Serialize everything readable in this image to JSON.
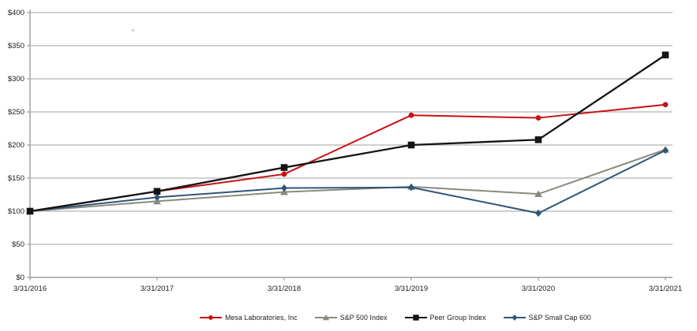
{
  "chart_data": {
    "type": "line",
    "title": "",
    "xlabel": "",
    "ylabel": "",
    "ylim": [
      0,
      400
    ],
    "grid": "horizontal",
    "legend_position": "bottom",
    "x_labels": [
      "3/31/2016",
      "3/31/2017",
      "3/31/2018",
      "3/31/2019",
      "3/31/2020",
      "3/31/2021"
    ],
    "y_ticks": [
      {
        "label": "$0",
        "value": 0
      },
      {
        "label": "$50",
        "value": 50
      },
      {
        "label": "$100",
        "value": 100
      },
      {
        "label": "$150",
        "value": 150
      },
      {
        "label": "$200",
        "value": 200
      },
      {
        "label": "$250",
        "value": 250
      },
      {
        "label": "$300",
        "value": 300
      },
      {
        "label": "$350",
        "value": 350
      },
      {
        "label": "$400",
        "value": 400
      }
    ],
    "series": [
      {
        "name": "Mesa Laboratories, Inc",
        "marker": "circle",
        "color": "#c81114",
        "values": [
          100,
          130,
          156,
          245,
          241,
          261
        ]
      },
      {
        "name": "S&P 500 Index",
        "marker": "triangle",
        "color": "#8a8a7c",
        "values": [
          100,
          115,
          129,
          137,
          126,
          193
        ]
      },
      {
        "name": "Peer Group Index",
        "marker": "square",
        "color": "#141414",
        "values": [
          100,
          130,
          166,
          200,
          208,
          336
        ]
      },
      {
        "name": "S&P Small Cap 600",
        "marker": "diamond",
        "color": "#2f567a",
        "values": [
          100,
          121,
          135,
          136,
          97,
          192
        ]
      }
    ],
    "colors": {
      "gridline": "#b3b3b3",
      "axis": "#8c8c8c",
      "tick_text": "#1a1a1a"
    }
  }
}
